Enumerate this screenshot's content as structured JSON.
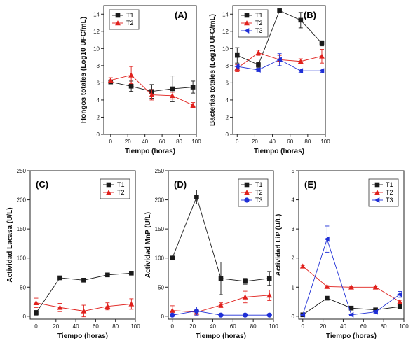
{
  "colors": {
    "T1": "#1a1a1a",
    "T2": "#e0201c",
    "T3": "#1f2fd6"
  },
  "chart_data": [
    {
      "type": "line",
      "panel_label": "(A)",
      "xlabel": "Tiempo (horas)",
      "ylabel": "Hongos totales (Log10 UFC/mL)",
      "xlim": [
        -8,
        100
      ],
      "ylim": [
        0,
        15
      ],
      "xticks": [
        0,
        20,
        40,
        60,
        80,
        100
      ],
      "yticks": [
        0,
        2,
        4,
        6,
        8,
        10,
        12,
        14
      ],
      "legend_position": "top-left",
      "series": [
        {
          "name": "T1",
          "marker": "square",
          "x": [
            0,
            24,
            48,
            72,
            96
          ],
          "y": [
            6.1,
            5.6,
            5.0,
            5.3,
            5.5
          ],
          "err": [
            0.2,
            0.6,
            0.8,
            1.5,
            0.7
          ]
        },
        {
          "name": "T2",
          "marker": "triangle-up",
          "x": [
            0,
            24,
            48,
            72,
            96
          ],
          "y": [
            6.3,
            6.9,
            4.6,
            4.5,
            3.4
          ],
          "err": [
            0.3,
            1.0,
            0.6,
            0.4,
            0.3
          ]
        }
      ]
    },
    {
      "type": "line",
      "panel_label": "(B)",
      "xlabel": "Tiempo (horas)",
      "ylabel": "Bacterias totales (Log10 UFC/mL)",
      "xlim": [
        -5,
        100
      ],
      "ylim": [
        0,
        15
      ],
      "xticks": [
        0,
        20,
        40,
        60,
        80,
        100
      ],
      "yticks": [
        0,
        2,
        4,
        6,
        8,
        10,
        12,
        14
      ],
      "legend_position": "top-left",
      "series": [
        {
          "name": "T1",
          "marker": "square",
          "x": [
            0,
            24,
            48,
            72,
            96
          ],
          "y": [
            9.2,
            8.1,
            14.4,
            13.3,
            10.6
          ],
          "err": [
            0.9,
            0.3,
            0.2,
            0.9,
            0.3
          ]
        },
        {
          "name": "T2",
          "marker": "triangle-up",
          "x": [
            0,
            24,
            48,
            72,
            96
          ],
          "y": [
            7.7,
            9.5,
            8.7,
            8.5,
            9.1
          ],
          "err": [
            0.4,
            0.3,
            0.5,
            0.3,
            0.8
          ]
        },
        {
          "name": "T3",
          "marker": "triangle-left",
          "x": [
            0,
            24,
            48,
            72,
            96
          ],
          "y": [
            7.9,
            7.5,
            8.7,
            7.4,
            7.4
          ],
          "err": [
            0.3,
            0.2,
            0.7,
            0.2,
            0.2
          ]
        }
      ]
    },
    {
      "type": "line",
      "panel_label": "(C)",
      "xlabel": "Tiempo (horas)",
      "ylabel": "Actividad Lacasa (U/L)",
      "xlim": [
        -6,
        100
      ],
      "ylim": [
        -5,
        250
      ],
      "xticks": [
        0,
        20,
        40,
        60,
        80,
        100
      ],
      "yticks": [
        0,
        50,
        100,
        150,
        200,
        250
      ],
      "legend_position": "top-right",
      "series": [
        {
          "name": "T1",
          "marker": "square",
          "x": [
            0,
            24,
            48,
            72,
            96
          ],
          "y": [
            6,
            66,
            62,
            71,
            74
          ],
          "err": [
            4,
            2,
            3,
            2,
            2
          ]
        },
        {
          "name": "T2",
          "marker": "triangle-up",
          "x": [
            0,
            24,
            48,
            72,
            96
          ],
          "y": [
            23,
            15,
            9,
            17,
            21
          ],
          "err": [
            8,
            7,
            10,
            6,
            9
          ]
        }
      ]
    },
    {
      "type": "line",
      "panel_label": "(D)",
      "xlabel": "Tiempo (horas)",
      "ylabel": "Actividad MnP (U/L)",
      "xlim": [
        -4,
        100
      ],
      "ylim": [
        -5,
        250
      ],
      "xticks": [
        0,
        20,
        40,
        60,
        80,
        100
      ],
      "yticks": [
        0,
        50,
        100,
        150,
        200,
        250
      ],
      "legend_position": "top-right",
      "series": [
        {
          "name": "T1",
          "marker": "square",
          "x": [
            0,
            24,
            48,
            72,
            96
          ],
          "y": [
            100,
            205,
            65,
            60,
            65
          ],
          "err": [
            2,
            12,
            28,
            5,
            12
          ]
        },
        {
          "name": "T2",
          "marker": "triangle-up",
          "x": [
            0,
            24,
            48,
            72,
            96
          ],
          "y": [
            10,
            7,
            19,
            33,
            36
          ],
          "err": [
            8,
            5,
            4,
            10,
            9
          ]
        },
        {
          "name": "T3",
          "marker": "circle",
          "x": [
            0,
            24,
            48,
            72,
            96
          ],
          "y": [
            2,
            9,
            2,
            2,
            2
          ],
          "err": [
            2,
            7,
            2,
            1,
            1
          ]
        }
      ]
    },
    {
      "type": "line",
      "panel_label": "(E)",
      "xlabel": "Tiempo (horas)",
      "ylabel": "Actividad LiP (U/L)",
      "xlim": [
        -4,
        100
      ],
      "ylim": [
        -0.1,
        5
      ],
      "xticks": [
        0,
        20,
        40,
        60,
        80,
        100
      ],
      "yticks": [
        0,
        1,
        2,
        3,
        4,
        5
      ],
      "legend_position": "top-right",
      "series": [
        {
          "name": "T1",
          "marker": "square",
          "x": [
            0,
            24,
            48,
            72,
            96
          ],
          "y": [
            0.05,
            0.62,
            0.28,
            0.22,
            0.33
          ],
          "err": [
            0.03,
            0.04,
            0.03,
            0.03,
            0.03
          ]
        },
        {
          "name": "T2",
          "marker": "triangle-up",
          "x": [
            0,
            24,
            48,
            72,
            96
          ],
          "y": [
            1.72,
            1.02,
            1.0,
            1.0,
            0.5
          ],
          "err": [
            0.03,
            0.03,
            0.03,
            0.03,
            0.05
          ]
        },
        {
          "name": "T3",
          "marker": "triangle-left",
          "x": [
            0,
            24,
            48,
            72,
            96
          ],
          "y": [
            0.05,
            2.65,
            0.05,
            0.15,
            0.75
          ],
          "err": [
            0.02,
            0.45,
            0.02,
            0.05,
            0.1
          ]
        }
      ]
    }
  ]
}
